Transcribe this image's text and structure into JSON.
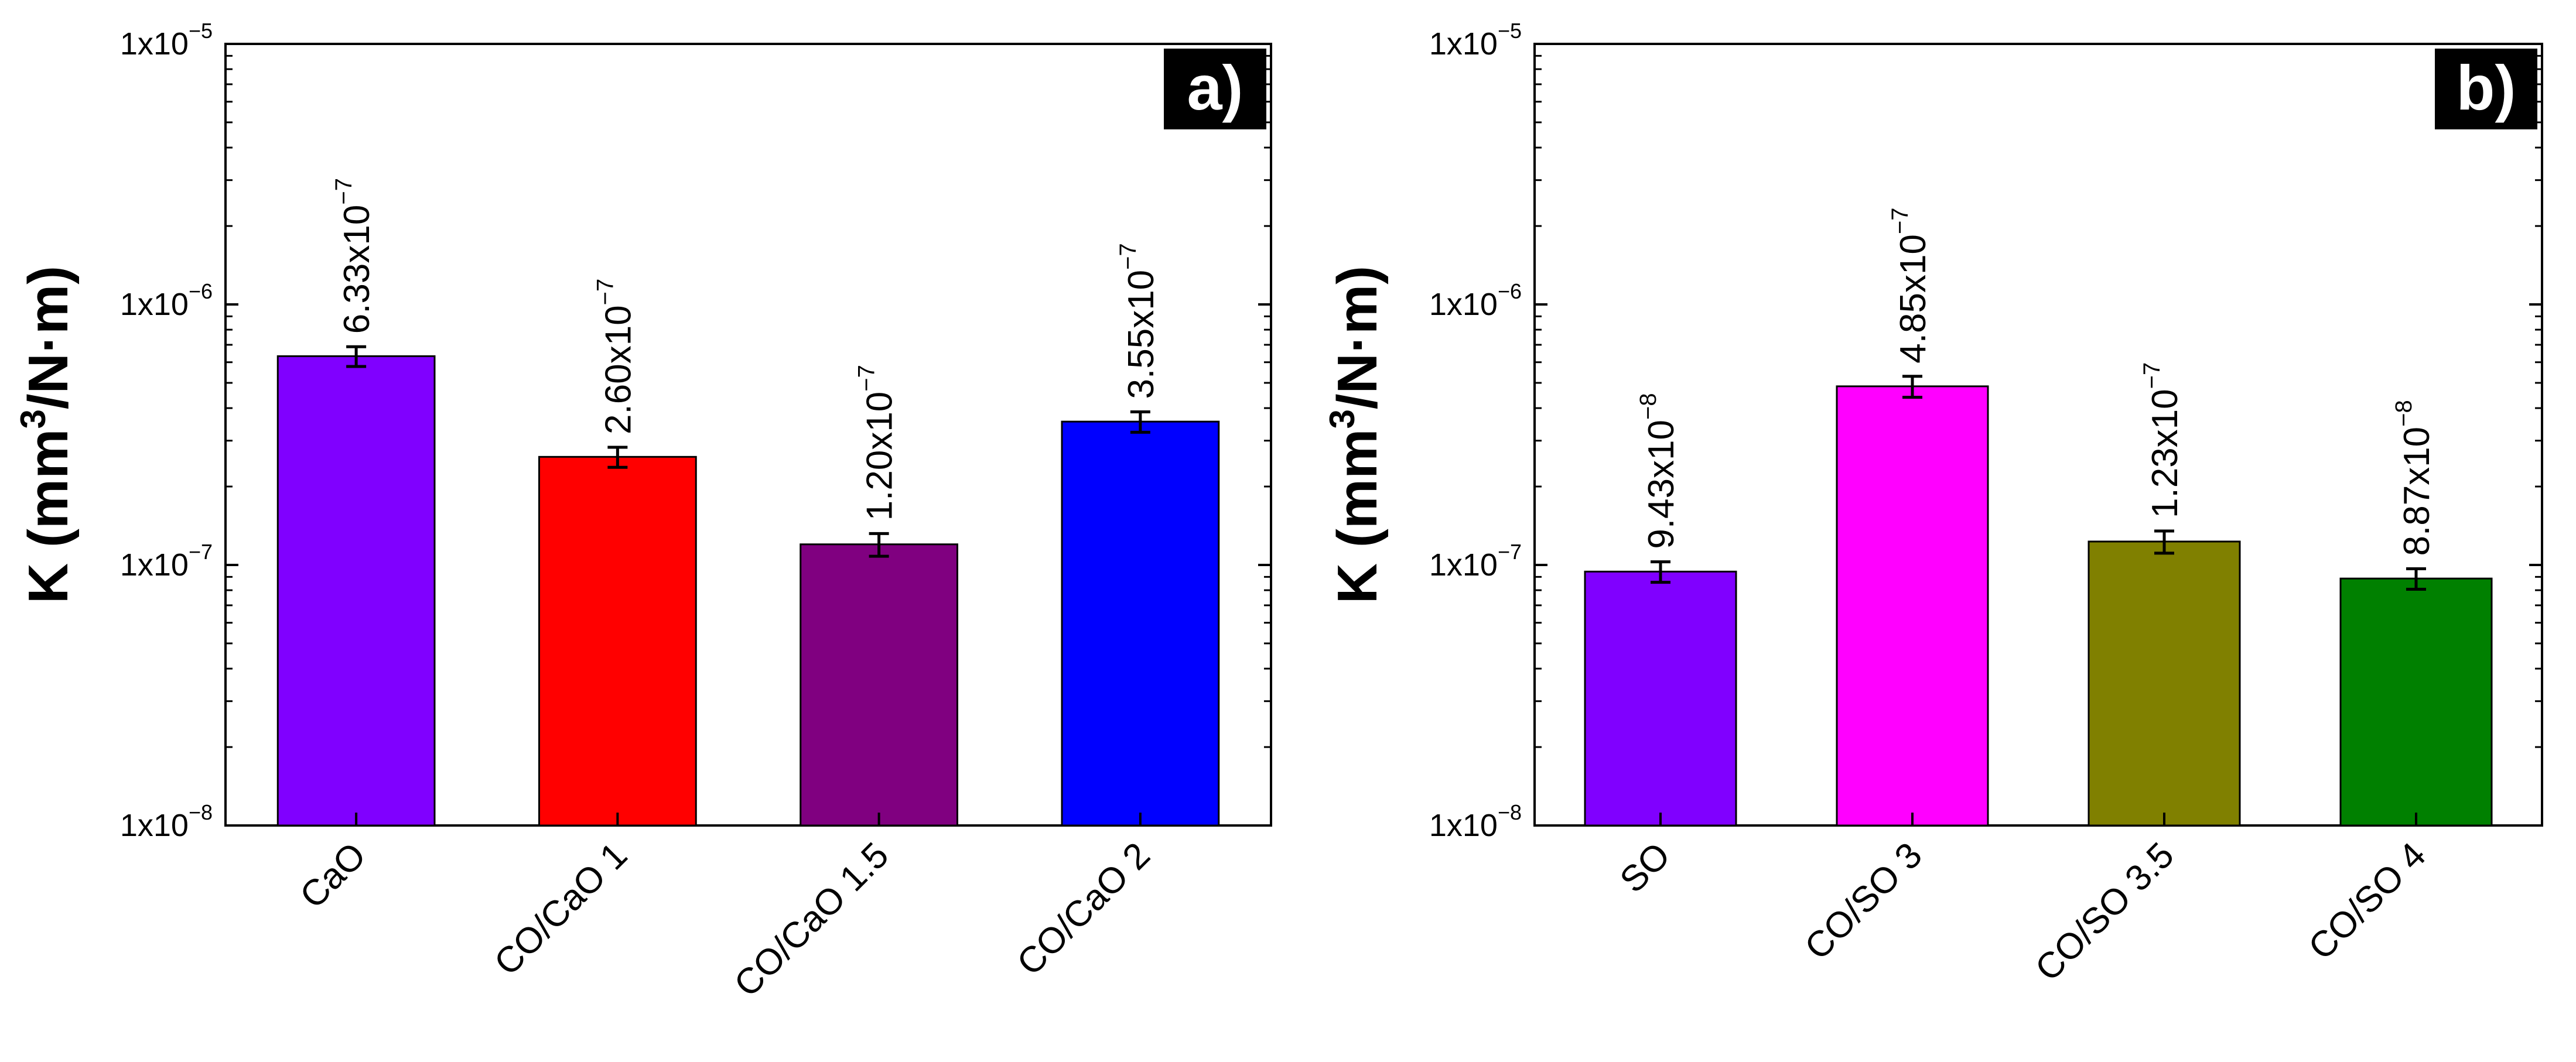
{
  "chart_data": [
    {
      "type": "bar",
      "panel": "a)",
      "scale": "log",
      "ylim": [
        1e-08,
        1e-05
      ],
      "ylabel": {
        "main": "K (mm",
        "sup": "3",
        "rest": "/N·m)"
      },
      "yticks": [
        {
          "base": "1x10",
          "exp": "−8",
          "value": 1e-08
        },
        {
          "base": "1x10",
          "exp": "−7",
          "value": 1e-07
        },
        {
          "base": "1x10",
          "exp": "−6",
          "value": 1e-06
        },
        {
          "base": "1x10",
          "exp": "−5",
          "value": 1e-05
        }
      ],
      "categories": [
        "CaO",
        "CO/CaO 1",
        "CO/CaO 1.5",
        "CO/CaO 2"
      ],
      "values": [
        6.33e-07,
        2.6e-07,
        1.2e-07,
        3.55e-07
      ],
      "errors": [
        5.5e-08,
        2.3e-08,
        1.2e-08,
        3.2e-08
      ],
      "labels": [
        {
          "mantissa": "6.33x10",
          "exp": "−7"
        },
        {
          "mantissa": "2.60x10",
          "exp": "−7"
        },
        {
          "mantissa": "1.20x10",
          "exp": "−7"
        },
        {
          "mantissa": "3.55x10",
          "exp": "−7"
        }
      ],
      "colors": [
        "#8000ff",
        "#ff0000",
        "#800080",
        "#0000ff"
      ]
    },
    {
      "type": "bar",
      "panel": "b)",
      "scale": "log",
      "ylim": [
        1e-08,
        1e-05
      ],
      "ylabel": {
        "main": "K (mm",
        "sup": "3",
        "rest": "/N·m)"
      },
      "yticks": [
        {
          "base": "1x10",
          "exp": "−8",
          "value": 1e-08
        },
        {
          "base": "1x10",
          "exp": "−7",
          "value": 1e-07
        },
        {
          "base": "1x10",
          "exp": "−6",
          "value": 1e-06
        },
        {
          "base": "1x10",
          "exp": "−5",
          "value": 1e-05
        }
      ],
      "categories": [
        "SO",
        "CO/SO 3",
        "CO/SO 3.5",
        "CO/SO 4"
      ],
      "values": [
        9.43e-08,
        4.85e-07,
        1.23e-07,
        8.87e-08
      ],
      "errors": [
        8.5e-09,
        4.5e-08,
        1.2e-08,
        8e-09
      ],
      "labels": [
        {
          "mantissa": "9.43x10",
          "exp": "−8"
        },
        {
          "mantissa": "4.85x10",
          "exp": "−7"
        },
        {
          "mantissa": "1.23x10",
          "exp": "−7"
        },
        {
          "mantissa": "8.87x10",
          "exp": "−8"
        }
      ],
      "colors": [
        "#8000ff",
        "#ff00ff",
        "#808000",
        "#008000"
      ]
    }
  ]
}
